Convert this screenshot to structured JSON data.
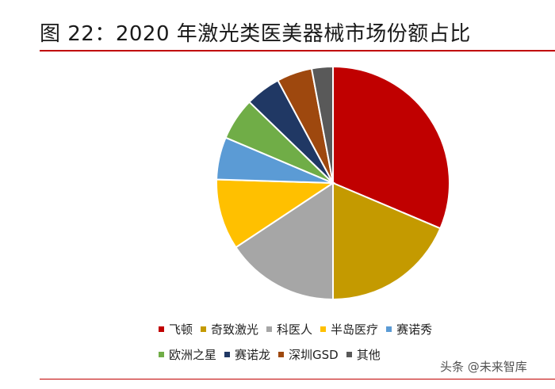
{
  "figure": {
    "title": "图 22：2020 年激光类医美器械市场份额占比"
  },
  "chart_data": {
    "type": "pie",
    "title": "",
    "slices": [
      {
        "label": "飞顿",
        "value": 32,
        "color": "#c00000"
      },
      {
        "label": "奇致激光",
        "value": 19,
        "color": "#c49a00"
      },
      {
        "label": "科医人",
        "value": 16,
        "color": "#a6a6a6"
      },
      {
        "label": "半岛医疗",
        "value": 10,
        "color": "#ffc000"
      },
      {
        "label": "赛诺秀",
        "value": 6,
        "color": "#5b9bd5"
      },
      {
        "label": "欧洲之星",
        "value": 6,
        "color": "#70ad47"
      },
      {
        "label": "赛诺龙",
        "value": 5,
        "color": "#203864"
      },
      {
        "label": "深圳GSD",
        "value": 5,
        "color": "#9e480e"
      },
      {
        "label": "其他",
        "value": 3,
        "color": "#595959"
      }
    ],
    "legend": {
      "position": "bottom",
      "rows": [
        [
          0,
          1,
          2,
          3,
          4
        ],
        [
          5,
          6,
          7,
          8
        ]
      ]
    }
  },
  "watermark": {
    "text": "头条 @未来智库"
  }
}
